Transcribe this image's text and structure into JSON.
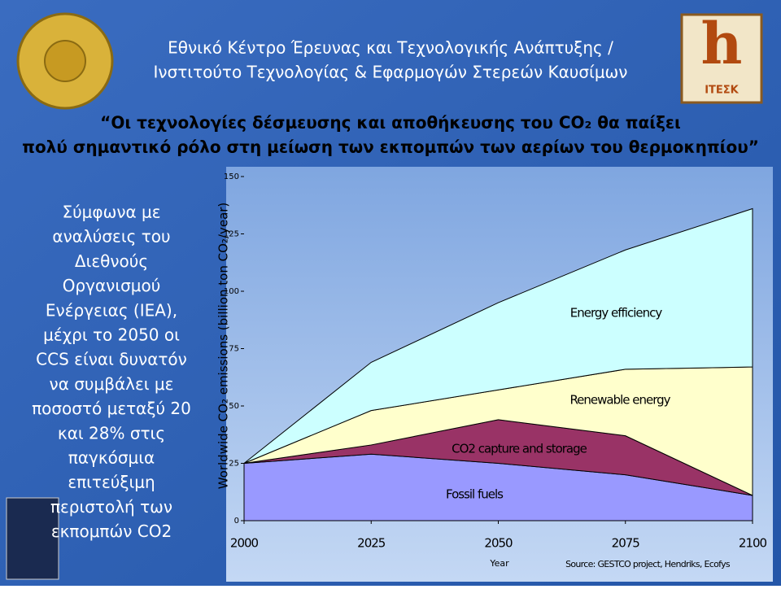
{
  "header": {
    "line1": "Εθνικό Κέντρο Έρευνας και Τεχνολογικής Ανάπτυξης /",
    "line2": "Ινστιτούτο Τεχνολογίας & Εφαρμογών Στερεών Καυσίμων"
  },
  "logo_text": "ΙΤΕΣΚ",
  "quote": {
    "line1": "“Οι τεχνολογίες δέσμευσης και αποθήκευσης του CO₂ θα παίξει",
    "line2": "πολύ σημαντικό ρόλο στη μείωση των εκπομπών των αερίων του θερμοκηπίου”"
  },
  "body_text": [
    "Σύμφωνα με",
    "αναλύσεις του",
    "Διεθνούς",
    "Οργανισμού",
    "Ενέργειας (IEA),",
    "μέχρι το 2050 οι",
    "CCS είναι δυνατόν",
    "να συμβάλει με",
    "ποσοστό μεταξύ 20",
    "και 28% στις",
    "παγκόσμια",
    "επιτεύξιμη",
    "περιστολή των",
    "εκπομπών CO2"
  ],
  "chart_data": {
    "type": "stacked_area",
    "x": [
      2000,
      2025,
      2050,
      2075,
      2100
    ],
    "series": [
      {
        "name": "Fossil fuels",
        "color": "#9999ff",
        "values": [
          25,
          29,
          25,
          20,
          11
        ]
      },
      {
        "name": "CO2 capture and storage",
        "color": "#993366",
        "values": [
          0,
          4,
          19,
          17,
          0
        ]
      },
      {
        "name": "Renewable energy",
        "color": "#ffffcc",
        "values": [
          0,
          15,
          13,
          29,
          56
        ]
      },
      {
        "name": "Energy efficiency",
        "color": "#ccffff",
        "values": [
          0,
          21,
          38,
          52,
          69
        ]
      }
    ],
    "xlim": [
      2000,
      2100
    ],
    "xticks": [
      2000,
      2025,
      2050,
      2075,
      2100
    ],
    "ylim": [
      0,
      150
    ],
    "yticks": [
      0,
      25,
      50,
      75,
      100,
      125,
      150
    ],
    "xlabel": "Year",
    "ylabel": "Worldwide CO₂ emissions (billion ton CO₂/year)",
    "source": "Source: GESTCO project, Hendriks, Ecofys"
  }
}
